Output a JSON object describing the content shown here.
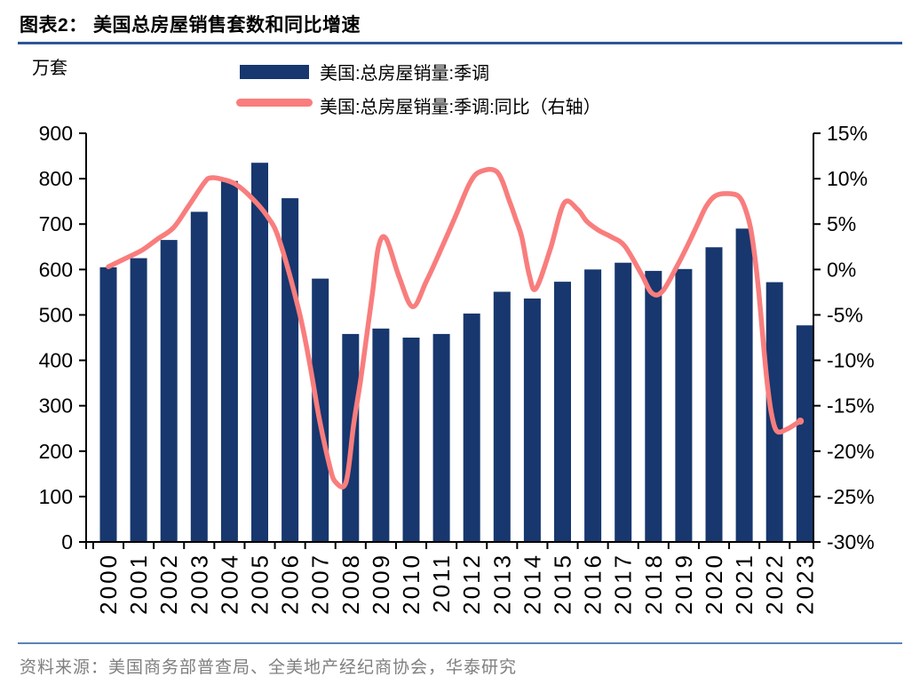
{
  "page": {
    "title": "图表2：  美国总房屋销售套数和同比增速",
    "source_note": "资料来源：美国商务部普查局、全美地产经纪商协会，华泰研究"
  },
  "legend": {
    "items": [
      {
        "label": "美国:总房屋销量:季调",
        "swatch": "bar"
      },
      {
        "label": "美国:总房屋销量:季调:同比（右轴）",
        "swatch": "line"
      }
    ]
  },
  "colors": {
    "bar": "#17376E",
    "line": "#F97D7D",
    "axis": "#000000",
    "title_rule": "#2E5596",
    "footer_rule": "#5B83B8",
    "source_text": "#7F7F7F"
  },
  "chart_data": {
    "type": "bar+line",
    "title": "美国总房屋销售套数和同比增速",
    "grid": false,
    "legend_position": "top",
    "categories": [
      "2000",
      "2001",
      "2002",
      "2003",
      "2004",
      "2005",
      "2006",
      "2007",
      "2008",
      "2009",
      "2010",
      "2011",
      "2012",
      "2013",
      "2014",
      "2015",
      "2016",
      "2017",
      "2018",
      "2019",
      "2020",
      "2021",
      "2022",
      "2023"
    ],
    "series": [
      {
        "name": "美国:总房屋销量:季调",
        "type": "bar",
        "yaxis": "left",
        "unit": "万套",
        "values": [
          605,
          625,
          665,
          727,
          795,
          835,
          757,
          580,
          458,
          470,
          450,
          458,
          503,
          551,
          536,
          573,
          600,
          615,
          597,
          601,
          649,
          690,
          572,
          477
        ]
      },
      {
        "name": "美国:总房屋销量:季调:同比（右轴）",
        "type": "line",
        "yaxis": "right",
        "unit": "%",
        "points": [
          [
            0,
            0.3
          ],
          [
            0.55,
            1.2
          ],
          [
            1.1,
            2.1
          ],
          [
            1.6,
            3.3
          ],
          [
            2.15,
            4.6
          ],
          [
            2.65,
            7.0
          ],
          [
            3.18,
            9.6
          ],
          [
            3.4,
            10.1
          ],
          [
            3.8,
            9.9
          ],
          [
            4.2,
            9.4
          ],
          [
            4.7,
            8.0
          ],
          [
            5.24,
            5.9
          ],
          [
            5.64,
            3.3
          ],
          [
            6.27,
            -4.2
          ],
          [
            6.62,
            -9.8
          ],
          [
            6.96,
            -16.3
          ],
          [
            7.3,
            -21.5
          ],
          [
            7.5,
            -23.4
          ],
          [
            7.85,
            -23.4
          ],
          [
            8.1,
            -17.1
          ],
          [
            8.33,
            -12.2
          ],
          [
            8.53,
            -7.3
          ],
          [
            8.73,
            -2.4
          ],
          [
            8.92,
            2.5
          ],
          [
            9.17,
            3.4
          ],
          [
            9.6,
            -0.8
          ],
          [
            10.05,
            -4.1
          ],
          [
            10.5,
            -1.3
          ],
          [
            10.93,
            1.8
          ],
          [
            11.47,
            5.9
          ],
          [
            11.95,
            9.6
          ],
          [
            12.3,
            10.8
          ],
          [
            12.85,
            10.7
          ],
          [
            13.25,
            7.5
          ],
          [
            13.45,
            5.6
          ],
          [
            13.65,
            3.6
          ],
          [
            13.9,
            -0.6
          ],
          [
            14.12,
            -2.1
          ],
          [
            14.6,
            2.3
          ],
          [
            15.05,
            7.3
          ],
          [
            15.5,
            6.6
          ],
          [
            15.8,
            5.3
          ],
          [
            16.2,
            4.3
          ],
          [
            16.6,
            3.6
          ],
          [
            17.05,
            2.6
          ],
          [
            17.6,
            -0.5
          ],
          [
            17.95,
            -2.6
          ],
          [
            18.3,
            -2.4
          ],
          [
            18.8,
            0.5
          ],
          [
            19.15,
            2.8
          ],
          [
            19.45,
            4.9
          ],
          [
            19.75,
            7.0
          ],
          [
            20.1,
            8.2
          ],
          [
            20.65,
            8.3
          ],
          [
            20.9,
            7.7
          ],
          [
            21.1,
            6.0
          ],
          [
            21.25,
            3.8
          ],
          [
            21.45,
            -1.5
          ],
          [
            21.6,
            -7.0
          ],
          [
            21.75,
            -12.3
          ],
          [
            21.9,
            -15.9
          ],
          [
            22.08,
            -17.8
          ],
          [
            22.4,
            -17.6
          ],
          [
            22.7,
            -17.0
          ],
          [
            22.85,
            -16.7
          ]
        ]
      }
    ],
    "left_axis": {
      "label": "万套",
      "min": 0,
      "max": 900,
      "step": 100,
      "ticks": [
        "0",
        "100",
        "200",
        "300",
        "400",
        "500",
        "600",
        "700",
        "800",
        "900"
      ]
    },
    "right_axis": {
      "label": "同比（右轴）",
      "min": -30,
      "max": 15,
      "step": 5,
      "ticks": [
        "15%",
        "10%",
        "5%",
        "0%",
        "-5%",
        "-10%",
        "-15%",
        "-20%",
        "-25%",
        "-30%"
      ]
    }
  }
}
